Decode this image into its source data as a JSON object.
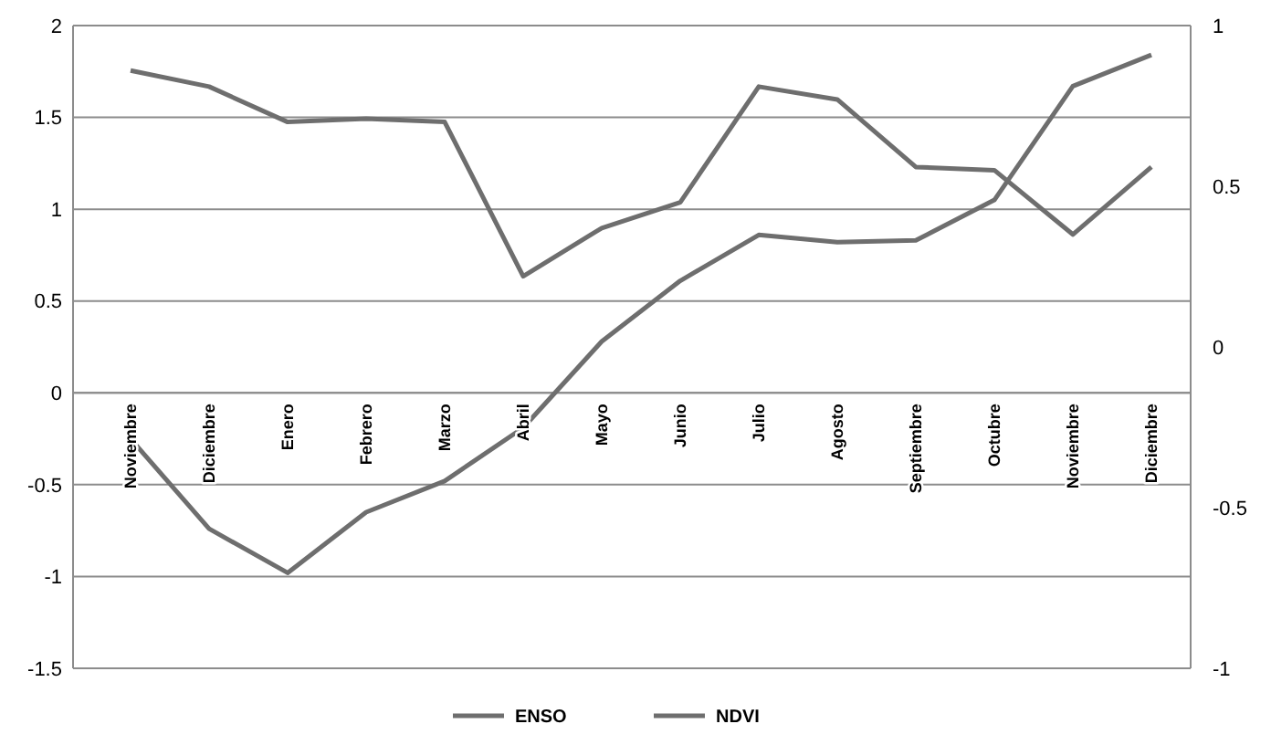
{
  "chart_data": {
    "type": "line",
    "categories": [
      "Noviembre",
      "Diciembre",
      "Enero",
      "Febrero",
      "Marzo",
      "Abril",
      "Mayo",
      "Junio",
      "Julio",
      "Agosto",
      "Septiembre",
      "Octubre",
      "Noviembre",
      "Diciembre"
    ],
    "series": [
      {
        "name": "ENSO",
        "color": "#6e6e6e",
        "values": [
          -0.25,
          -0.74,
          -0.98,
          -0.65,
          -0.48,
          -0.19,
          0.28,
          0.61,
          0.86,
          0.82,
          0.83,
          1.05,
          1.67,
          1.84
        ]
      },
      {
        "name": "NDVI",
        "color": "#6e6e6e",
        "axis": "y2",
        "values": [
          0.86,
          0.81,
          0.7,
          0.71,
          0.7,
          0.22,
          0.37,
          0.45,
          0.81,
          0.77,
          0.56,
          0.55,
          0.35,
          0.56
        ]
      }
    ],
    "ylim": [
      -1.5,
      2
    ],
    "yticks": [
      -1.5,
      -1,
      -0.5,
      0,
      0.5,
      1,
      1.5,
      2
    ],
    "y2lim": [
      -1,
      1
    ],
    "y2ticks": [
      -1,
      -0.5,
      0,
      0.5,
      1
    ],
    "grid": "y",
    "legend": "bottom",
    "marker": "none",
    "line_style": "solid"
  }
}
